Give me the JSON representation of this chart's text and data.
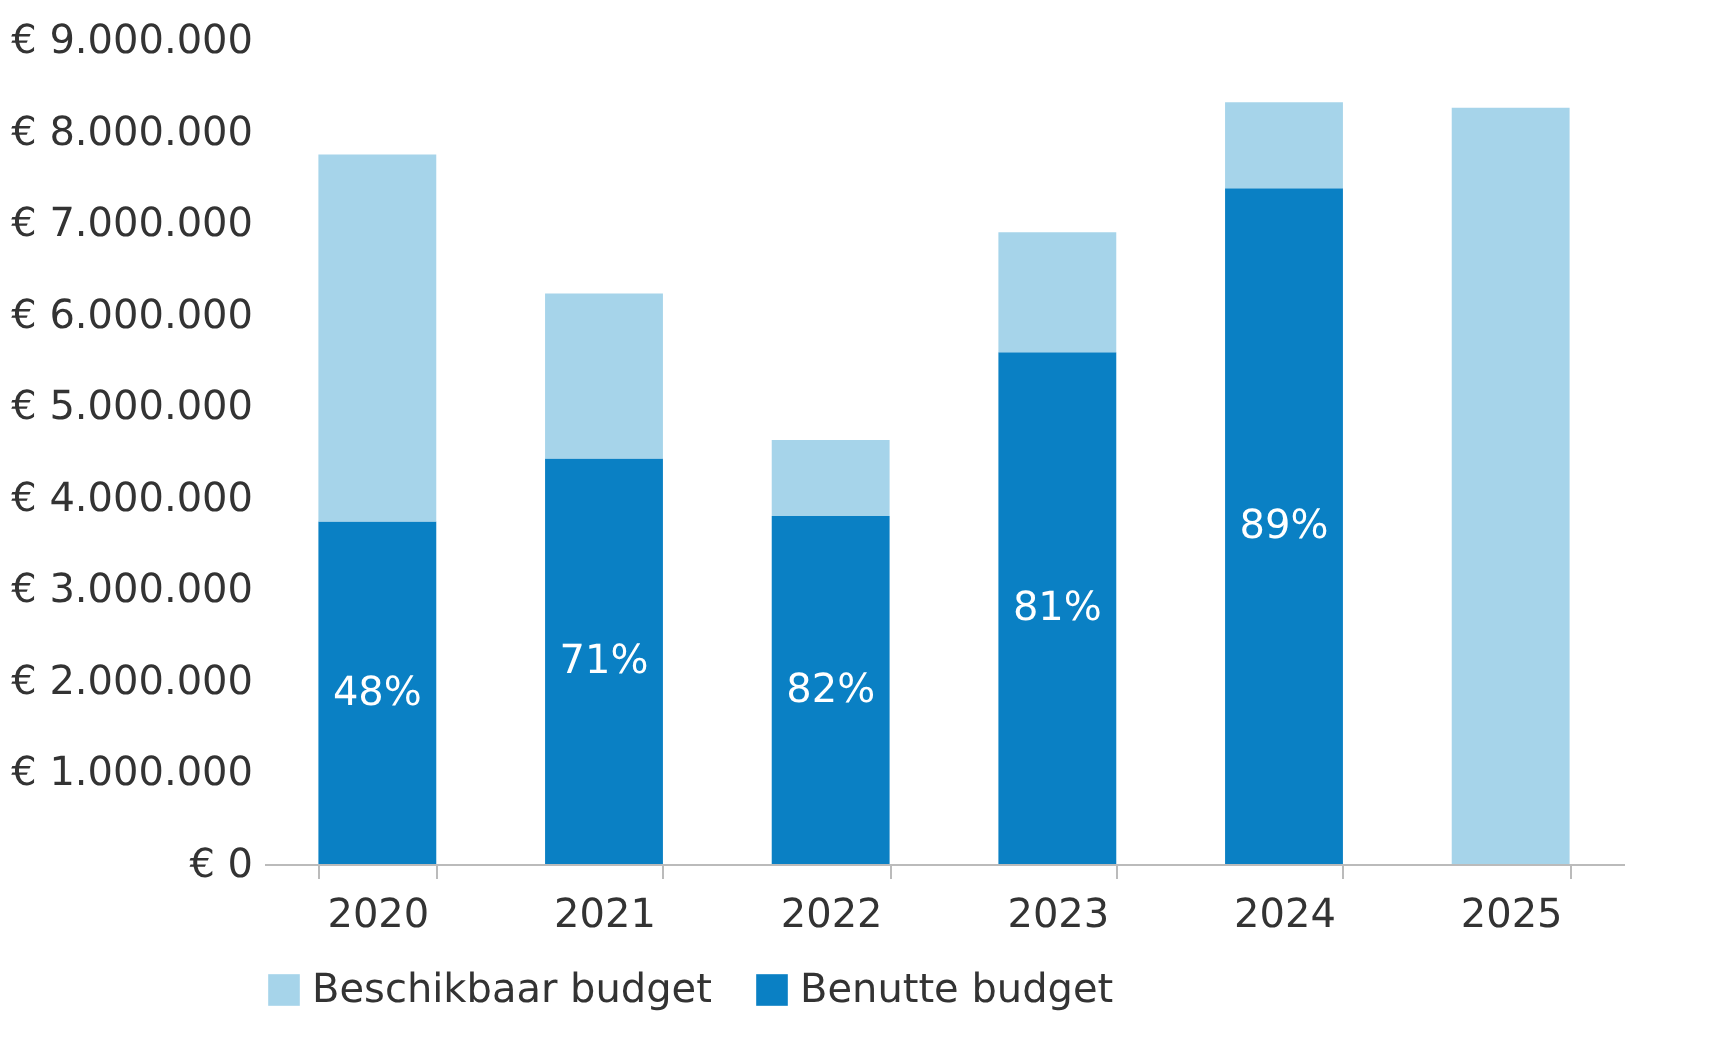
{
  "chart_data": {
    "type": "bar",
    "stacked": true,
    "categories": [
      "2020",
      "2021",
      "2022",
      "2023",
      "2024",
      "2025"
    ],
    "series": [
      {
        "name": "Benutte budget",
        "color": "#0a80c4",
        "values": [
          3740000,
          4430000,
          3800000,
          5590000,
          7380000,
          null
        ]
      },
      {
        "name": "Beschikbaar budget",
        "color": "#a6d4ea",
        "values": [
          4010000,
          1800000,
          830000,
          1310000,
          940000,
          8260000
        ]
      }
    ],
    "ylim": [
      0,
      9000000
    ],
    "yticks": [
      {
        "value": 0,
        "label": "€ 0"
      },
      {
        "value": 1000000,
        "label": "€ 1.000.000"
      },
      {
        "value": 2000000,
        "label": "€ 2.000.000"
      },
      {
        "value": 3000000,
        "label": "€ 3.000.000"
      },
      {
        "value": 4000000,
        "label": "€ 4.000.000"
      },
      {
        "value": 5000000,
        "label": "€ 5.000.000"
      },
      {
        "value": 6000000,
        "label": "€ 6.000.000"
      },
      {
        "value": 7000000,
        "label": "€ 7.000.000"
      },
      {
        "value": 8000000,
        "label": "€ 8.000.000"
      },
      {
        "value": 9000000,
        "label": "€ 9.000.000"
      }
    ],
    "annotations": [
      "48%",
      "71%",
      "82%",
      "81%",
      "89%"
    ],
    "grid": false,
    "legend": "bottom"
  }
}
